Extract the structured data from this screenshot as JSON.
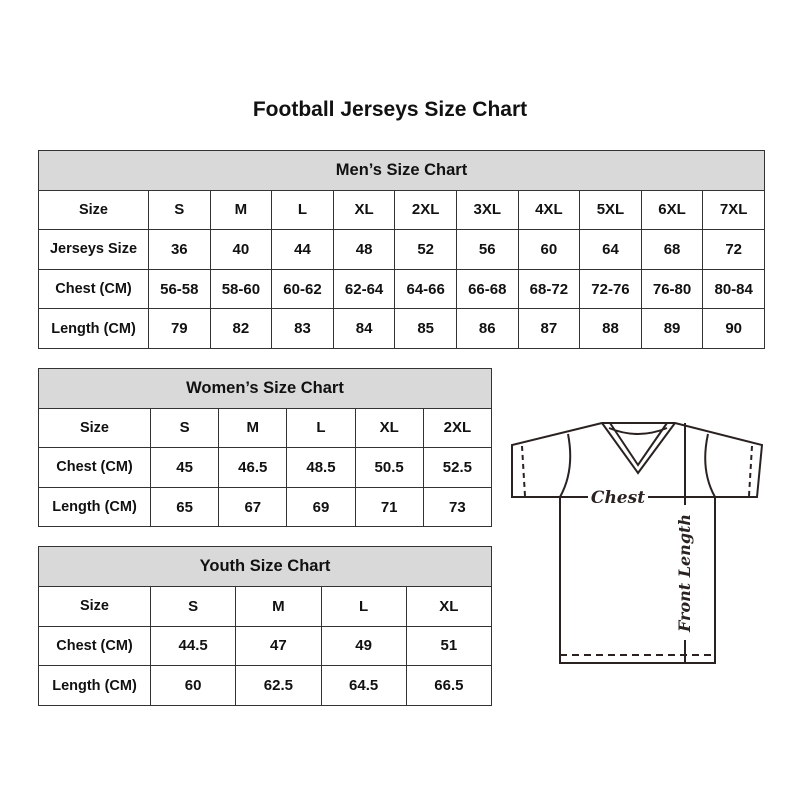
{
  "title": "Football Jerseys Size Chart",
  "men": {
    "caption": "Men’s Size Chart",
    "rows": [
      [
        "Size",
        "S",
        "M",
        "L",
        "XL",
        "2XL",
        "3XL",
        "4XL",
        "5XL",
        "6XL",
        "7XL"
      ],
      [
        "Jerseys Size",
        "36",
        "40",
        "44",
        "48",
        "52",
        "56",
        "60",
        "64",
        "68",
        "72"
      ],
      [
        "Chest (CM)",
        "56-58",
        "58-60",
        "60-62",
        "62-64",
        "64-66",
        "66-68",
        "68-72",
        "72-76",
        "76-80",
        "80-84"
      ],
      [
        "Length (CM)",
        "79",
        "82",
        "83",
        "84",
        "85",
        "86",
        "87",
        "88",
        "89",
        "90"
      ]
    ]
  },
  "women": {
    "caption": "Women’s Size Chart",
    "rows": [
      [
        "Size",
        "S",
        "M",
        "L",
        "XL",
        "2XL"
      ],
      [
        "Chest (CM)",
        "45",
        "46.5",
        "48.5",
        "50.5",
        "52.5"
      ],
      [
        "Length (CM)",
        "65",
        "67",
        "69",
        "71",
        "73"
      ]
    ]
  },
  "youth": {
    "caption": "Youth Size Chart",
    "rows": [
      [
        "Size",
        "S",
        "M",
        "L",
        "XL"
      ],
      [
        "Chest (CM)",
        "44.5",
        "47",
        "49",
        "51"
      ],
      [
        "Length (CM)",
        "60",
        "62.5",
        "64.5",
        "66.5"
      ]
    ]
  },
  "diagram": {
    "chest_label": "Chest",
    "length_label": "Front Length"
  },
  "colors": {
    "header_bg": "#d9d9d9",
    "border": "#333333"
  }
}
